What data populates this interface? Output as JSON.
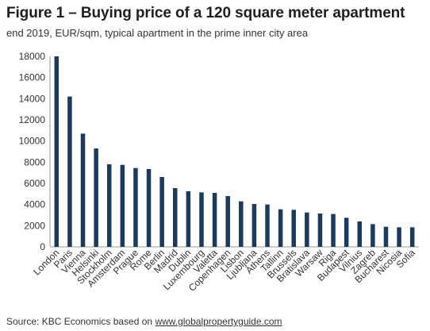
{
  "title": "Figure 1 – Buying price of a 120 square meter apartment",
  "subtitle": "end 2019, EUR/sqm, typical apartment in the prime inner city area",
  "source": {
    "prefix": "Source: KBC Economics based on ",
    "link": "www.globalpropertyguide.com"
  },
  "chart_data": {
    "type": "bar",
    "title": "Figure 1 – Buying price of a 120 square meter apartment",
    "subtitle": "end 2019, EUR/sqm, typical apartment in the prime inner city area",
    "xlabel": "",
    "ylabel": "",
    "ylim": [
      0,
      18000
    ],
    "yticks": [
      0,
      2000,
      4000,
      6000,
      8000,
      10000,
      12000,
      14000,
      16000,
      18000
    ],
    "grid": false,
    "legend": "none",
    "bar_color": "#1b3a5c",
    "categories": [
      "London",
      "Paris",
      "Vienna",
      "Helsinki",
      "Stockholm",
      "Amsterdam",
      "Prague",
      "Rome",
      "Berlin",
      "Madrid",
      "Dublin",
      "Luxembourg",
      "Valetta",
      "Copenhagen",
      "Lisbon",
      "Ljubljana",
      "Athens",
      "Tallinn",
      "Brussels",
      "Bratislava",
      "Warsaw",
      "Riga",
      "Budapest",
      "Vilnius",
      "Zagreb",
      "Bucharest",
      "Nicosia",
      "Sofia"
    ],
    "values": [
      18000,
      14200,
      10700,
      9300,
      7800,
      7750,
      7450,
      7350,
      6600,
      5550,
      5250,
      5150,
      5100,
      4800,
      4300,
      4050,
      4000,
      3550,
      3500,
      3250,
      3150,
      3100,
      2750,
      2400,
      2150,
      1900,
      1850,
      1850
    ]
  }
}
